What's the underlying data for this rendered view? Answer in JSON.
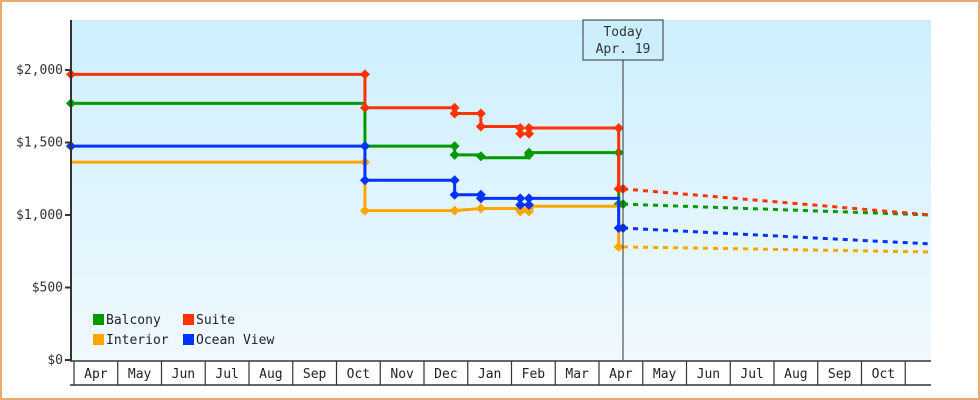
{
  "chart_data": {
    "type": "line",
    "title": "",
    "xlabel": "",
    "ylabel": "",
    "ylim": [
      0,
      2300
    ],
    "y_ticks": [
      {
        "value": 0,
        "label": "$0"
      },
      {
        "value": 500,
        "label": "$500"
      },
      {
        "value": 1000,
        "label": "$1,000"
      },
      {
        "value": 1500,
        "label": "$1,500"
      },
      {
        "value": 2000,
        "label": "$2,000"
      }
    ],
    "x_months": [
      "Apr",
      "May",
      "Jun",
      "Jul",
      "Aug",
      "Sep",
      "Oct",
      "Nov",
      "Dec",
      "Jan",
      "Feb",
      "Mar",
      "Apr",
      "May",
      "Jun",
      "Jul",
      "Aug",
      "Sep",
      "Oct"
    ],
    "grid": false,
    "legend_position": "bottom-left inside",
    "today_marker": {
      "line1": "Today",
      "line2": "Apr. 19",
      "x_month": 12.55
    },
    "series": [
      {
        "name": "Balcony",
        "color": "#009900",
        "points": [
          [
            -0.07,
            1770
          ],
          [
            6.65,
            1770
          ],
          [
            6.65,
            1475
          ],
          [
            8.7,
            1475
          ],
          [
            8.7,
            1415
          ],
          [
            9.3,
            1415
          ],
          [
            9.3,
            1395
          ],
          [
            10.4,
            1395
          ],
          [
            10.4,
            1430
          ],
          [
            12.45,
            1430
          ],
          [
            12.45,
            1075
          ],
          [
            12.55,
            1075
          ]
        ],
        "projection": [
          [
            12.55,
            1075
          ],
          [
            19.6,
            1000
          ]
        ]
      },
      {
        "name": "Suite",
        "color": "#ff3300",
        "points": [
          [
            -0.07,
            1970
          ],
          [
            6.65,
            1970
          ],
          [
            6.65,
            1740
          ],
          [
            8.7,
            1740
          ],
          [
            8.7,
            1700
          ],
          [
            9.3,
            1700
          ],
          [
            9.3,
            1610
          ],
          [
            10.2,
            1610
          ],
          [
            10.2,
            1560
          ],
          [
            10.4,
            1560
          ],
          [
            10.4,
            1600
          ],
          [
            12.45,
            1600
          ],
          [
            12.45,
            1180
          ],
          [
            12.55,
            1180
          ]
        ],
        "projection": [
          [
            12.55,
            1180
          ],
          [
            19.6,
            1000
          ]
        ]
      },
      {
        "name": "Interior",
        "color": "#ffa500",
        "points": [
          [
            -0.07,
            1365
          ],
          [
            6.65,
            1365
          ],
          [
            6.65,
            1030
          ],
          [
            8.7,
            1030
          ],
          [
            9.3,
            1045
          ],
          [
            10.2,
            1045
          ],
          [
            10.2,
            1025
          ],
          [
            10.4,
            1025
          ],
          [
            10.4,
            1060
          ],
          [
            12.45,
            1060
          ],
          [
            12.45,
            780
          ],
          [
            12.55,
            780
          ]
        ],
        "projection": [
          [
            12.55,
            780
          ],
          [
            19.6,
            745
          ]
        ]
      },
      {
        "name": "Ocean View",
        "color": "#0033ff",
        "points": [
          [
            -0.07,
            1475
          ],
          [
            6.65,
            1475
          ],
          [
            6.65,
            1240
          ],
          [
            8.7,
            1240
          ],
          [
            8.7,
            1140
          ],
          [
            9.3,
            1140
          ],
          [
            9.3,
            1115
          ],
          [
            10.2,
            1115
          ],
          [
            10.2,
            1070
          ],
          [
            10.4,
            1070
          ],
          [
            10.4,
            1115
          ],
          [
            12.45,
            1115
          ],
          [
            12.45,
            910
          ],
          [
            12.55,
            910
          ]
        ],
        "projection": [
          [
            12.55,
            910
          ],
          [
            19.6,
            800
          ]
        ]
      }
    ],
    "markers": {
      "Balcony": [
        [
          -0.07,
          1770
        ],
        [
          6.65,
          1475
        ],
        [
          8.7,
          1475
        ],
        [
          8.7,
          1415
        ],
        [
          9.3,
          1405
        ],
        [
          10.4,
          1415
        ],
        [
          10.4,
          1430
        ],
        [
          12.45,
          1430
        ],
        [
          12.55,
          1075
        ],
        [
          12.45,
          1075
        ]
      ],
      "Suite": [
        [
          -0.07,
          1970
        ],
        [
          6.65,
          1970
        ],
        [
          6.65,
          1740
        ],
        [
          8.7,
          1740
        ],
        [
          8.7,
          1700
        ],
        [
          9.3,
          1700
        ],
        [
          9.3,
          1610
        ],
        [
          10.2,
          1600
        ],
        [
          10.2,
          1560
        ],
        [
          10.4,
          1560
        ],
        [
          10.4,
          1600
        ],
        [
          12.45,
          1600
        ],
        [
          12.45,
          1180
        ],
        [
          12.55,
          1180
        ]
      ],
      "Interior": [
        [
          6.65,
          1365
        ],
        [
          6.65,
          1030
        ],
        [
          8.7,
          1030
        ],
        [
          9.3,
          1045
        ],
        [
          10.2,
          1045
        ],
        [
          10.2,
          1025
        ],
        [
          10.4,
          1025
        ],
        [
          10.4,
          1045
        ],
        [
          12.45,
          780
        ]
      ],
      "Ocean View": [
        [
          -0.07,
          1475
        ],
        [
          6.65,
          1475
        ],
        [
          6.65,
          1240
        ],
        [
          8.7,
          1240
        ],
        [
          8.7,
          1140
        ],
        [
          9.3,
          1140
        ],
        [
          9.3,
          1115
        ],
        [
          10.2,
          1115
        ],
        [
          10.2,
          1070
        ],
        [
          10.4,
          1070
        ],
        [
          10.4,
          1115
        ],
        [
          12.45,
          910
        ],
        [
          12.55,
          910
        ]
      ]
    }
  },
  "legend": {
    "items": [
      {
        "label": "Balcony",
        "color": "#009900"
      },
      {
        "label": "Suite",
        "color": "#ff3300"
      },
      {
        "label": "Interior",
        "color": "#ffa500"
      },
      {
        "label": "Ocean View",
        "color": "#0033ff"
      }
    ]
  },
  "today": {
    "line1": "Today",
    "line2": "Apr. 19"
  }
}
